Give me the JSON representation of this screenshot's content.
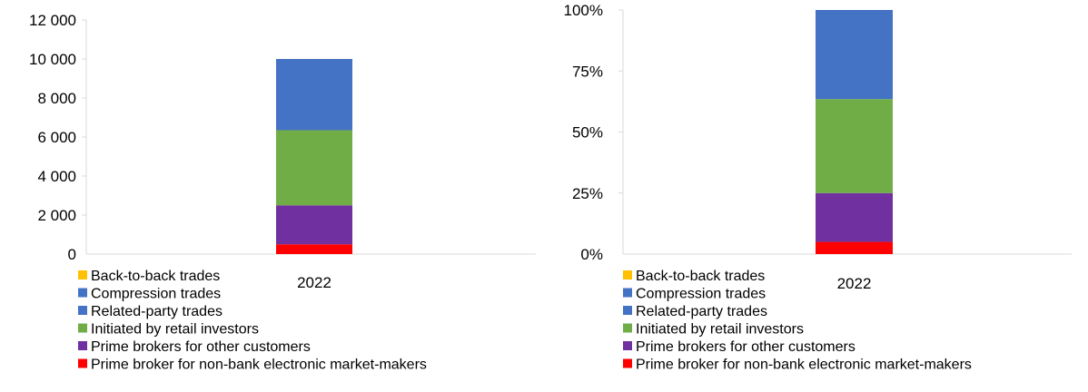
{
  "chart_data": [
    {
      "type": "bar",
      "stacked": true,
      "categories": [
        "2022"
      ],
      "ylim": [
        0,
        12000
      ],
      "yticks": [
        "0",
        "2 000",
        "4 000",
        "6 000",
        "8 000",
        "10 000",
        "12 000"
      ],
      "series": [
        {
          "name": "Prime broker for non-bank electronic market-makers",
          "color": "#ff0000",
          "values": [
            500
          ]
        },
        {
          "name": "Prime brokers for other customers",
          "color": "#7030a0",
          "values": [
            2000
          ]
        },
        {
          "name": "Initiated by retail investors",
          "color": "#70ad47",
          "values": [
            3850
          ]
        },
        {
          "name": "Related-party trades",
          "color": "#4472c4",
          "values": [
            3650
          ]
        },
        {
          "name": "Compression trades",
          "color": "#4472c4",
          "values": [
            0
          ]
        },
        {
          "name": "Back-to-back trades",
          "color": "#ffc000",
          "values": [
            0
          ]
        }
      ]
    },
    {
      "type": "bar",
      "stacked": true,
      "percent": true,
      "categories": [
        "2022"
      ],
      "ylim": [
        0,
        100
      ],
      "yticks": [
        "0%",
        "25%",
        "50%",
        "75%",
        "100%"
      ],
      "series": [
        {
          "name": "Prime broker for non-bank electronic market-makers",
          "color": "#ff0000",
          "values": [
            5
          ]
        },
        {
          "name": "Prime brokers for other customers",
          "color": "#7030a0",
          "values": [
            20
          ]
        },
        {
          "name": "Initiated by retail investors",
          "color": "#70ad47",
          "values": [
            38.5
          ]
        },
        {
          "name": "Related-party trades",
          "color": "#4472c4",
          "values": [
            36.5
          ]
        },
        {
          "name": "Compression trades",
          "color": "#4472c4",
          "values": [
            0
          ]
        },
        {
          "name": "Back-to-back trades",
          "color": "#ffc000",
          "values": [
            0
          ]
        }
      ]
    }
  ]
}
